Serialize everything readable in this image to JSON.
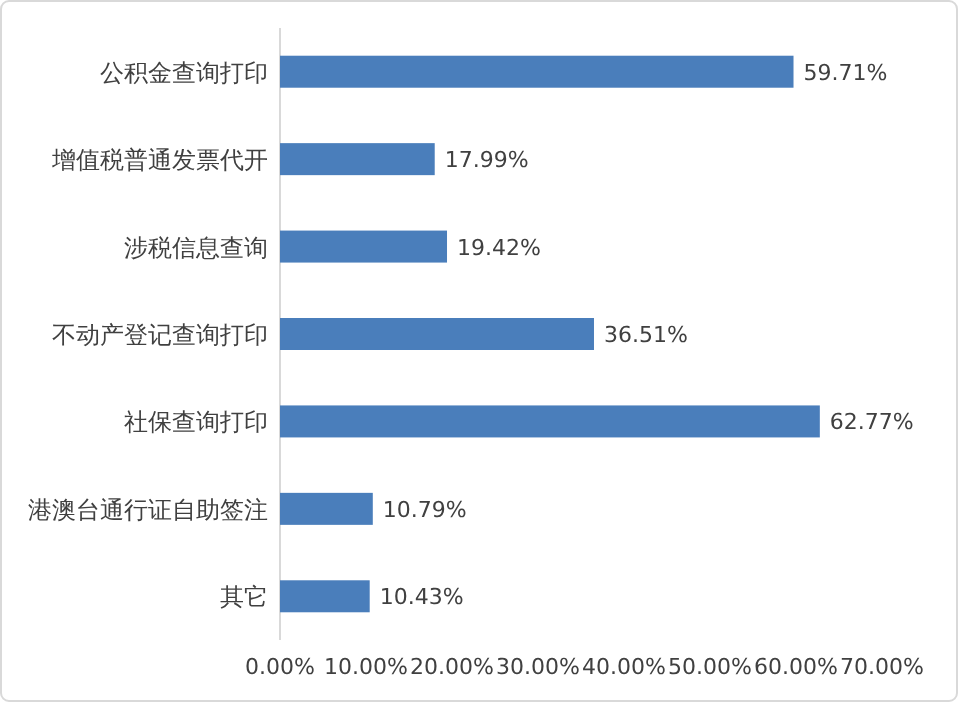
{
  "chart_data": {
    "type": "bar",
    "orientation": "horizontal",
    "categories": [
      "公积金查询打印",
      "增值税普通发票代开",
      "涉税信息查询",
      "不动产登记查询打印",
      "社保查询打印",
      "港澳台通行证自助签注",
      "其它"
    ],
    "values": [
      59.71,
      17.99,
      19.42,
      36.51,
      62.77,
      10.79,
      10.43
    ],
    "value_labels": [
      "59.71%",
      "17.99%",
      "19.42%",
      "36.51%",
      "62.77%",
      "10.79%",
      "10.43%"
    ],
    "color": "#4a7ebb",
    "xlim": [
      0,
      70
    ],
    "xticks": [
      {
        "value": 0,
        "label": "0.00%"
      },
      {
        "value": 10,
        "label": "10.00%"
      },
      {
        "value": 20,
        "label": "20.00%"
      },
      {
        "value": 30,
        "label": "30.00%"
      },
      {
        "value": 40,
        "label": "40.00%"
      },
      {
        "value": 50,
        "label": "50.00%"
      },
      {
        "value": 60,
        "label": "60.00%"
      },
      {
        "value": 70,
        "label": "70.00%"
      }
    ]
  }
}
